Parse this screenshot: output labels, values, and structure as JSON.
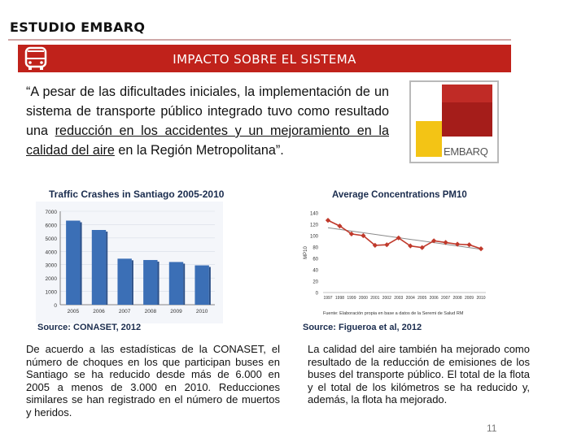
{
  "header": {
    "title": "ESTUDIO EMBARQ"
  },
  "banner": {
    "title": "IMPACTO SOBRE EL SISTEMA",
    "icon": "bus-icon"
  },
  "quote": {
    "part1": "“A pesar de las dificultades iniciales, la implementación de un sistema de transporte público integrado tuvo como resultado una ",
    "highlight": "reducción en los accidentes y un mejoramiento en la calidad del aire",
    "part2": " en la Región Metropolitana”."
  },
  "cover": {
    "logo_text": "EMBARQ"
  },
  "chart_data": [
    {
      "type": "bar",
      "title": "Traffic Crashes in Santiago 2005-2010",
      "source": "Source: CONASET, 2012",
      "categories": [
        "2005",
        "2006",
        "2007",
        "2008",
        "2009",
        "2010"
      ],
      "values": [
        6300,
        5600,
        3450,
        3350,
        3200,
        2950
      ],
      "yticks": [
        "0",
        "1000",
        "2000",
        "3000",
        "4000",
        "5000",
        "6000",
        "7000"
      ],
      "ylim": [
        0,
        7000
      ],
      "color": "#3b6fb6"
    },
    {
      "type": "line",
      "title": "Average Concentrations PM10",
      "source": "Source: Figueroa et al, 2012",
      "ylabel": "MP10",
      "note": "Fuente: Elaboración propia en base a datos de la Seremi de Salud RM",
      "categories": [
        "1997",
        "1998",
        "1999",
        "2000",
        "2001",
        "2002",
        "2003",
        "2004",
        "2005",
        "2006",
        "2007",
        "2008",
        "2009",
        "2010"
      ],
      "x_labels": [
        "1997",
        "1998",
        "1999",
        "2000",
        "2001",
        "2002",
        "2003",
        "2004",
        "2005",
        "2006",
        "2007",
        "2008",
        "2009",
        "2010"
      ],
      "values": [
        127,
        117,
        103,
        100,
        83,
        84,
        96,
        82,
        79,
        91,
        88,
        85,
        84,
        77
      ],
      "trend": [
        114,
        76
      ],
      "yticks": [
        "0",
        "20",
        "40",
        "60",
        "80",
        "100",
        "120",
        "140"
      ],
      "ylim": [
        0,
        140
      ],
      "color": "#c0392b"
    }
  ],
  "paragraphs": {
    "left": "De acuerdo a las estadísticas de la CONASET, el número de choques en los que participan buses en Santiago se ha reducido desde más de 6.000 en 2005 a menos de 3.000 en 2010. Reducciones similares se han registrado en el número de muertos y heridos.",
    "right": "La calidad del aire también ha mejorado como resultado de la reducción de emisiones de los buses del transporte público. El total de la flota y el total de los kilómetros se ha reducido y, además, la flota ha mejorado."
  },
  "page_number": "11"
}
